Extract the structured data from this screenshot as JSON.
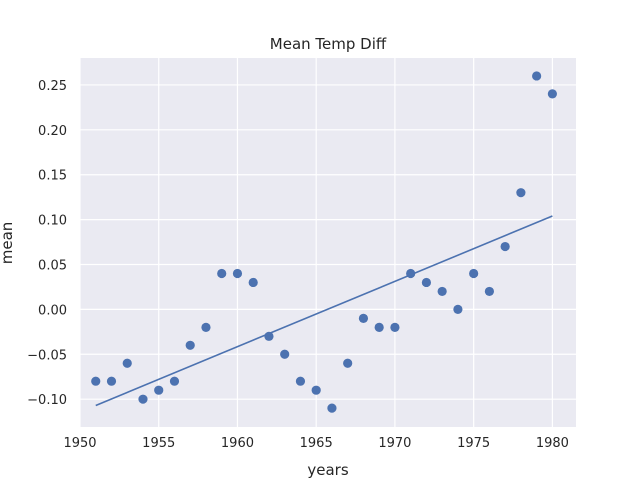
{
  "chart_data": {
    "type": "scatter",
    "title": "Mean Temp Diff",
    "xlabel": "years",
    "ylabel": "mean",
    "xlim": [
      1950,
      1981.5
    ],
    "ylim": [
      -0.131,
      0.28
    ],
    "xticks": [
      1950,
      1955,
      1960,
      1965,
      1970,
      1975,
      1980
    ],
    "yticks": [
      -0.1,
      -0.05,
      0.0,
      0.05,
      0.1,
      0.15,
      0.2,
      0.25
    ],
    "xtick_labels": [
      "1950",
      "1955",
      "1960",
      "1965",
      "1970",
      "1975",
      "1980"
    ],
    "ytick_labels": [
      "−0.10",
      "−0.05",
      "0.00",
      "0.05",
      "0.10",
      "0.15",
      "0.20",
      "0.25"
    ],
    "grid": true,
    "style": {
      "background": "#eaeaf2",
      "grid_color": "#ffffff",
      "marker_color": "#4c72b0",
      "line_color": "#4c72b0"
    },
    "series": [
      {
        "kind": "points",
        "x": [
          1951,
          1952,
          1953,
          1954,
          1955,
          1956,
          1957,
          1958,
          1959,
          1960,
          1961,
          1962,
          1963,
          1964,
          1965,
          1966,
          1967,
          1968,
          1969,
          1970,
          1971,
          1972,
          1973,
          1974,
          1975,
          1976,
          1977,
          1978,
          1979,
          1980
        ],
        "y": [
          -0.08,
          -0.08,
          -0.06,
          -0.1,
          -0.09,
          -0.08,
          -0.04,
          -0.02,
          0.04,
          0.04,
          0.03,
          -0.03,
          -0.05,
          -0.08,
          -0.09,
          -0.11,
          -0.06,
          -0.01,
          -0.02,
          -0.02,
          0.04,
          0.03,
          0.02,
          0.0,
          0.04,
          0.02,
          0.07,
          0.13,
          0.26,
          0.24
        ]
      },
      {
        "kind": "fit-line",
        "x": [
          1951,
          1980
        ],
        "y": [
          -0.107,
          0.104
        ]
      }
    ]
  }
}
